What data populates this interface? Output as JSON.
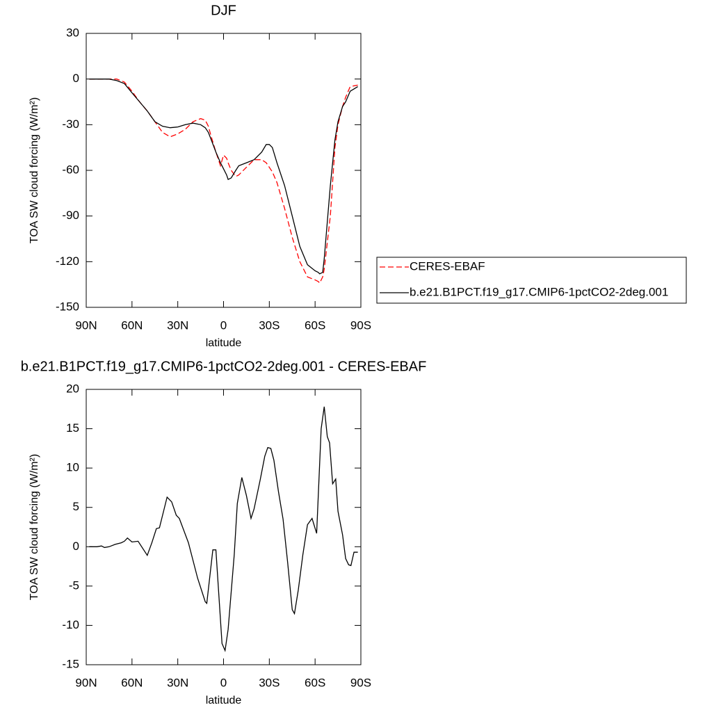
{
  "chart_data": [
    {
      "type": "line",
      "title": "DJF",
      "xlabel": "latitude",
      "ylabel": "TOA SW cloud forcing (W/m²)",
      "x": [
        88,
        80,
        75,
        70,
        65,
        60,
        55,
        50,
        45,
        40,
        35,
        30,
        25,
        20,
        15,
        12,
        10,
        8,
        5,
        2,
        0,
        -2,
        -3,
        -5,
        -8,
        -10,
        -15,
        -20,
        -25,
        -28,
        -30,
        -32,
        -35,
        -40,
        -45,
        -50,
        -55,
        -60,
        -62,
        -63,
        -65,
        -66,
        -70,
        -73,
        -75,
        -78,
        -80,
        -83,
        -88
      ],
      "series": [
        {
          "name": "CERES-EBAF",
          "color": "#ff0000",
          "line_style": "dashed",
          "values": [
            0,
            0,
            0,
            0,
            -2,
            -8,
            -15,
            -21,
            -28,
            -35,
            -38,
            -36,
            -33,
            -28,
            -26,
            -27,
            -31,
            -38,
            -48,
            -57,
            -50,
            -52,
            -55,
            -60,
            -64,
            -63,
            -58,
            -53,
            -53,
            -55,
            -58,
            -61,
            -68,
            -85,
            -104,
            -120,
            -130,
            -132,
            -133,
            -134,
            -130,
            -125,
            -90,
            -45,
            -30,
            -18,
            -12,
            -5,
            -4
          ]
        },
        {
          "name": "b.e21.B1PCT.f19_g17.CMIP6-1pctCO2-2deg.001",
          "color": "#000000",
          "line_style": "solid",
          "values": [
            0,
            0,
            0,
            -1,
            -3,
            -9,
            -15,
            -21,
            -28,
            -31,
            -32,
            -31.5,
            -30,
            -29,
            -30,
            -32,
            -35,
            -40,
            -48,
            -55,
            -59,
            -63,
            -66,
            -65,
            -60,
            -57,
            -55,
            -53,
            -48,
            -43,
            -43,
            -45,
            -55,
            -70,
            -90,
            -110,
            -122,
            -126,
            -127,
            -128,
            -127,
            -118,
            -70,
            -40,
            -28,
            -18,
            -15,
            -8,
            -5
          ]
        }
      ],
      "xlim": [
        90,
        -90
      ],
      "xticks": [
        {
          "value": 90,
          "label": "90N"
        },
        {
          "value": 60,
          "label": "60N"
        },
        {
          "value": 30,
          "label": "30N"
        },
        0,
        {
          "value": -30,
          "label": "30S"
        },
        {
          "value": -60,
          "label": "60S"
        },
        {
          "value": -90,
          "label": "90S"
        }
      ],
      "ylim": [
        -150,
        30
      ],
      "yticks": [
        -150,
        -120,
        -90,
        -60,
        -30,
        0,
        30
      ],
      "legend": "outside-right"
    },
    {
      "type": "line",
      "title": "b.e21.B1PCT.f19_g17.CMIP6-1pctCO2-2deg.001 - CERES-EBAF",
      "xlabel": "latitude",
      "ylabel": "TOA SW cloud forcing (W/m²)",
      "x": [
        88,
        83,
        80,
        78,
        75,
        71,
        67,
        65,
        63,
        60,
        56,
        50,
        47,
        44,
        42,
        37,
        34,
        31,
        29,
        23,
        17,
        12,
        11,
        7,
        5,
        1,
        -1,
        -3,
        -7,
        -9,
        -12,
        -15,
        -18,
        -20,
        -24,
        -27,
        -29,
        -31,
        -33,
        -36,
        -39,
        -42,
        -45,
        -46.5,
        -49,
        -52,
        -55,
        -58,
        -61,
        -64,
        -66,
        -68,
        -69.5,
        -71.5,
        -73.5,
        -75,
        -78,
        -80,
        -82,
        -83.5,
        -85.5,
        -88
      ],
      "values": [
        0,
        0,
        0.1,
        -0.1,
        0,
        0.3,
        0.5,
        0.7,
        1.1,
        0.6,
        0.7,
        -1.1,
        0.5,
        2.3,
        2.4,
        6.3,
        5.7,
        4,
        3.6,
        0.5,
        -4,
        -7,
        -7.2,
        -0.4,
        -0.4,
        -12.3,
        -13.2,
        -10.5,
        -1,
        5.5,
        8.8,
        6.5,
        3.6,
        4.8,
        8.5,
        11.5,
        12.6,
        12.5,
        11,
        7,
        3.5,
        -2,
        -8,
        -8.5,
        -5.5,
        -1,
        2.8,
        3.6,
        1.7,
        15,
        17.8,
        14,
        13.2,
        8,
        8.6,
        4.5,
        1.5,
        -1.5,
        -2.3,
        -2.4,
        -0.7,
        -0.7
      ],
      "color": "#000000",
      "xlim": [
        90,
        -90
      ],
      "xticks": [
        {
          "value": 90,
          "label": "90N"
        },
        {
          "value": 60,
          "label": "60N"
        },
        {
          "value": 30,
          "label": "30N"
        },
        0,
        {
          "value": -30,
          "label": "30S"
        },
        {
          "value": -60,
          "label": "60S"
        },
        {
          "value": -90,
          "label": "90S"
        }
      ],
      "ylim": [
        -15,
        20
      ],
      "yticks": [
        -15,
        -10,
        -5,
        0,
        5,
        10,
        15,
        20
      ]
    }
  ]
}
